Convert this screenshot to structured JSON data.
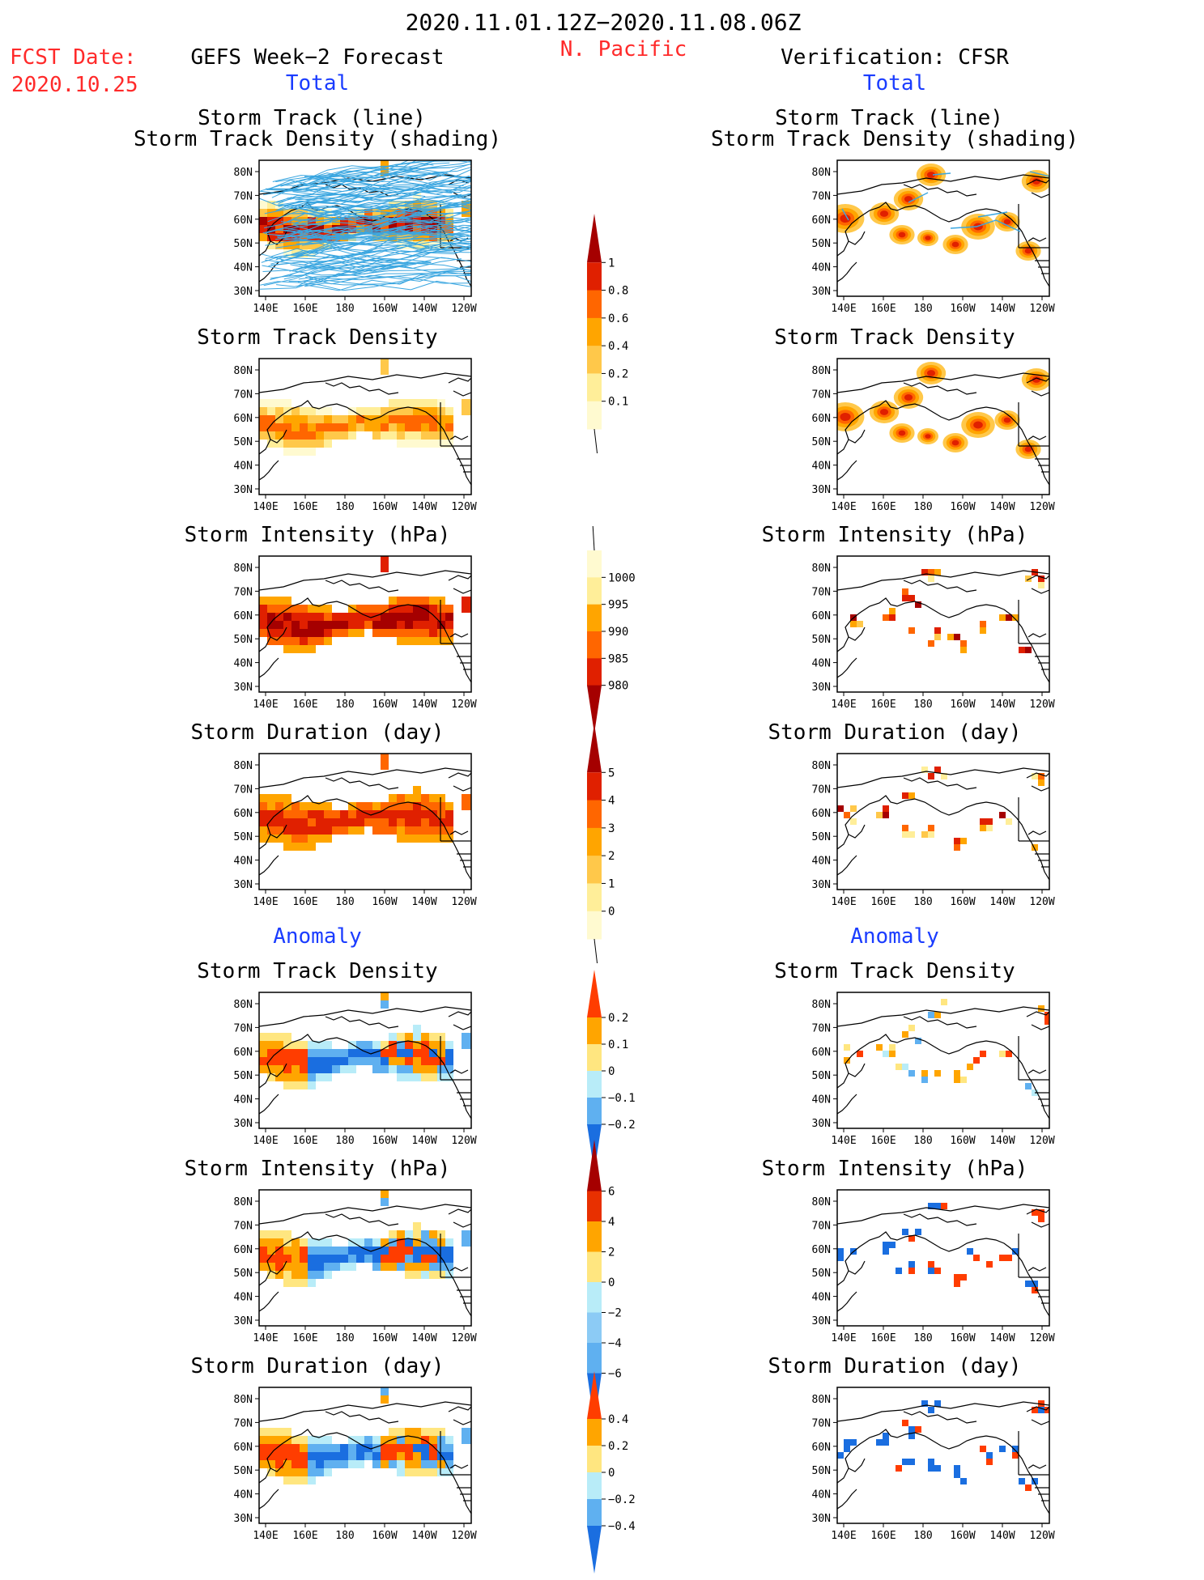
{
  "header": {
    "date_range": "2020.11.01.12Z−2020.11.08.06Z",
    "region": "N. Pacific",
    "fcst_label": "FCST Date:",
    "fcst_date": "2020.10.25",
    "left_title": "GEFS Week−2 Forecast",
    "right_title": "Verification: CFSR",
    "total_label": "Total",
    "anomaly_label": "Anomaly"
  },
  "panel_titles": {
    "storm_track_line": "Storm Track (line)",
    "storm_track_density_shading": "Storm Track Density (shading)",
    "storm_track_density": "Storm Track Density",
    "storm_intensity": "Storm Intensity (hPa)",
    "storm_duration": "Storm Duration (day)"
  },
  "axes": {
    "lon_ticks": [
      "140E",
      "160E",
      "180",
      "160W",
      "140W",
      "120W"
    ],
    "lat_ticks": [
      "80N",
      "70N",
      "60N",
      "50N",
      "40N",
      "30N"
    ]
  },
  "colorbars": {
    "density_total": {
      "labels": [
        "1",
        "0.8",
        "0.6",
        "0.4",
        "0.2",
        "0.1"
      ],
      "colors": [
        "#a50000",
        "#e02000",
        "#ff6600",
        "#ffa500",
        "#ffc84a",
        "#ffee99",
        "#fffad0"
      ]
    },
    "intensity_total": {
      "labels": [
        "1000",
        "995",
        "990",
        "985",
        "980"
      ],
      "colors": [
        "#fffad0",
        "#ffee99",
        "#ffa500",
        "#ff6600",
        "#e02000",
        "#a50000"
      ]
    },
    "duration_total": {
      "labels": [
        "5",
        "4",
        "3",
        "2",
        "1",
        "0"
      ],
      "colors": [
        "#a50000",
        "#e02000",
        "#ff6600",
        "#ffa500",
        "#ffc84a",
        "#ffee99",
        "#fffad0"
      ]
    },
    "density_anom": {
      "labels": [
        "0.2",
        "0.1",
        "0",
        "−0.1",
        "−0.2"
      ],
      "colors": [
        "#ff3d00",
        "#ffa500",
        "#ffe680",
        "#b8ecf8",
        "#5fb0f0",
        "#1a6ee0"
      ]
    },
    "intensity_anom": {
      "labels": [
        "6",
        "4",
        "2",
        "0",
        "−2",
        "−4",
        "−6"
      ],
      "colors": [
        "#a50000",
        "#e83000",
        "#ffa500",
        "#ffe680",
        "#b8ecf8",
        "#8ccbf5",
        "#5fb0f0",
        "#1a6ee0"
      ]
    },
    "duration_anom": {
      "labels": [
        "0.4",
        "0.2",
        "0",
        "−0.2",
        "−0.4"
      ],
      "colors": [
        "#ff3d00",
        "#ffa500",
        "#ffe680",
        "#b8ecf8",
        "#5fb0f0",
        "#1a6ee0"
      ]
    }
  },
  "palette": {
    "track_line": "#3aa6e0",
    "coast": "#000000",
    "dens": [
      "#fffad0",
      "#ffee99",
      "#ffc84a",
      "#ffa500",
      "#ff6600",
      "#e02000",
      "#a50000"
    ],
    "anom_pos": [
      "#ffe680",
      "#ffa500",
      "#ff3d00"
    ],
    "anom_neg": [
      "#b8ecf8",
      "#5fb0f0",
      "#1a6ee0"
    ]
  }
}
